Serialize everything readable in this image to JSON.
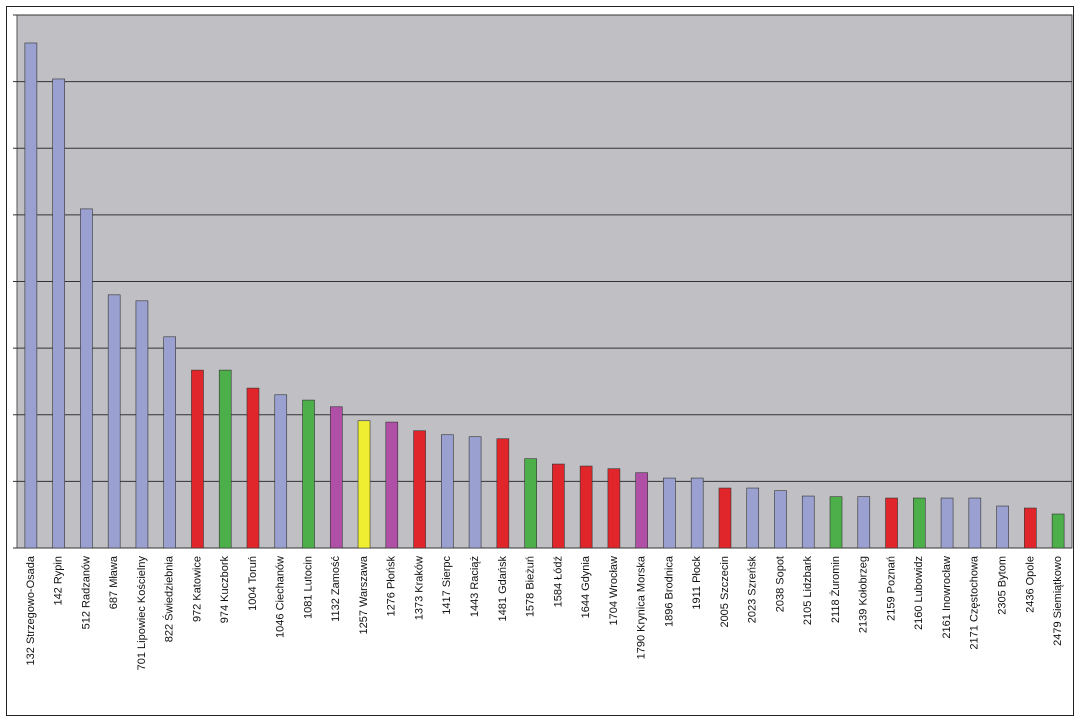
{
  "chart_data": {
    "type": "bar",
    "categories": [
      "132 Strzegowo-Osada",
      "142 Rypin",
      "512 Radzanów",
      "687 Mława",
      "701 Lipowiec Kościelny",
      "822 Świedziebnia",
      "972 Katowice",
      "974 Kuczbork",
      "1004 Toruń",
      "1046 Ciechanów",
      "1081 Lutocin",
      "1132 Zamość",
      "1257 Warszawa",
      "1276 Płońsk",
      "1373 Kraków",
      "1417 Sierpc",
      "1443 Raciąż",
      "1481 Gdańsk",
      "1578 Bieżuń",
      "1584 Łódź",
      "1644 Gdynia",
      "1704 Wrocław",
      "1790 Krynica Morska",
      "1896 Brodnica",
      "1911 Płock",
      "2005 Szczecin",
      "2023 Szreńsk",
      "2038 Sopot",
      "2105 Lidzbark",
      "2118 Żuromin",
      "2139 Kołobrzeg",
      "2159 Poznań",
      "2160 Lubowidz",
      "2161 Inowrocław",
      "2171 Częstochowa",
      "2305 Bytom",
      "2436 Opole",
      "2479 Siemiątkowo"
    ],
    "values": [
      7.58,
      7.04,
      5.09,
      3.8,
      3.71,
      3.17,
      2.67,
      2.67,
      2.4,
      2.3,
      2.22,
      2.12,
      1.91,
      1.89,
      1.76,
      1.7,
      1.67,
      1.64,
      1.34,
      1.26,
      1.23,
      1.19,
      1.13,
      1.05,
      1.05,
      0.9,
      0.9,
      0.86,
      0.78,
      0.77,
      0.77,
      0.75,
      0.75,
      0.75,
      0.75,
      0.63,
      0.6,
      0.51
    ],
    "colors": [
      "#9aa0cf",
      "#9aa0cf",
      "#9aa0cf",
      "#9aa0cf",
      "#9aa0cf",
      "#9aa0cf",
      "#e0262a",
      "#4caf4a",
      "#e0262a",
      "#9aa0cf",
      "#4caf4a",
      "#b04fa6",
      "#f0ee30",
      "#b04fa6",
      "#e0262a",
      "#9aa0cf",
      "#9aa0cf",
      "#e0262a",
      "#4caf4a",
      "#e0262a",
      "#e0262a",
      "#e0262a",
      "#b04fa6",
      "#9aa0cf",
      "#9aa0cf",
      "#e0262a",
      "#9aa0cf",
      "#9aa0cf",
      "#9aa0cf",
      "#4caf4a",
      "#9aa0cf",
      "#e0262a",
      "#4caf4a",
      "#9aa0cf",
      "#9aa0cf",
      "#9aa0cf",
      "#e0262a",
      "#4caf4a"
    ],
    "ylim": [
      0,
      8
    ],
    "yticks": [
      0,
      1,
      2,
      3,
      4,
      5,
      6,
      7,
      8
    ],
    "grid": true
  }
}
